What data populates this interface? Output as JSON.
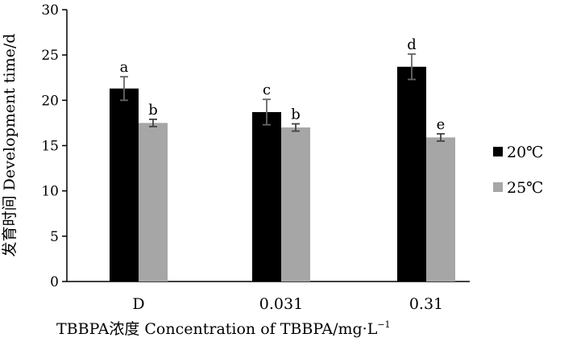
{
  "chart_data": {
    "type": "bar",
    "title": "",
    "xlabel": "TBBPA浓度 Concentration of TBBPA/mg·L",
    "xlabel_superscript": "−1",
    "ylabel": "发育时间 Development time/d",
    "ylim": [
      0,
      30
    ],
    "yticks": [
      0,
      5,
      10,
      15,
      20,
      25,
      30
    ],
    "categories": [
      "D",
      "0.031",
      "0.31"
    ],
    "series": [
      {
        "name": "20℃",
        "color": "#000000",
        "values": [
          21.3,
          18.7,
          23.7
        ],
        "errors": [
          1.3,
          1.4,
          1.4
        ],
        "labels": [
          "a",
          "c",
          "d"
        ]
      },
      {
        "name": "25℃",
        "color": "#a6a6a6",
        "values": [
          17.5,
          17.0,
          15.9
        ],
        "errors": [
          0.4,
          0.4,
          0.4
        ],
        "labels": [
          "b",
          "b",
          "e"
        ]
      }
    ],
    "legend_position": "right"
  }
}
